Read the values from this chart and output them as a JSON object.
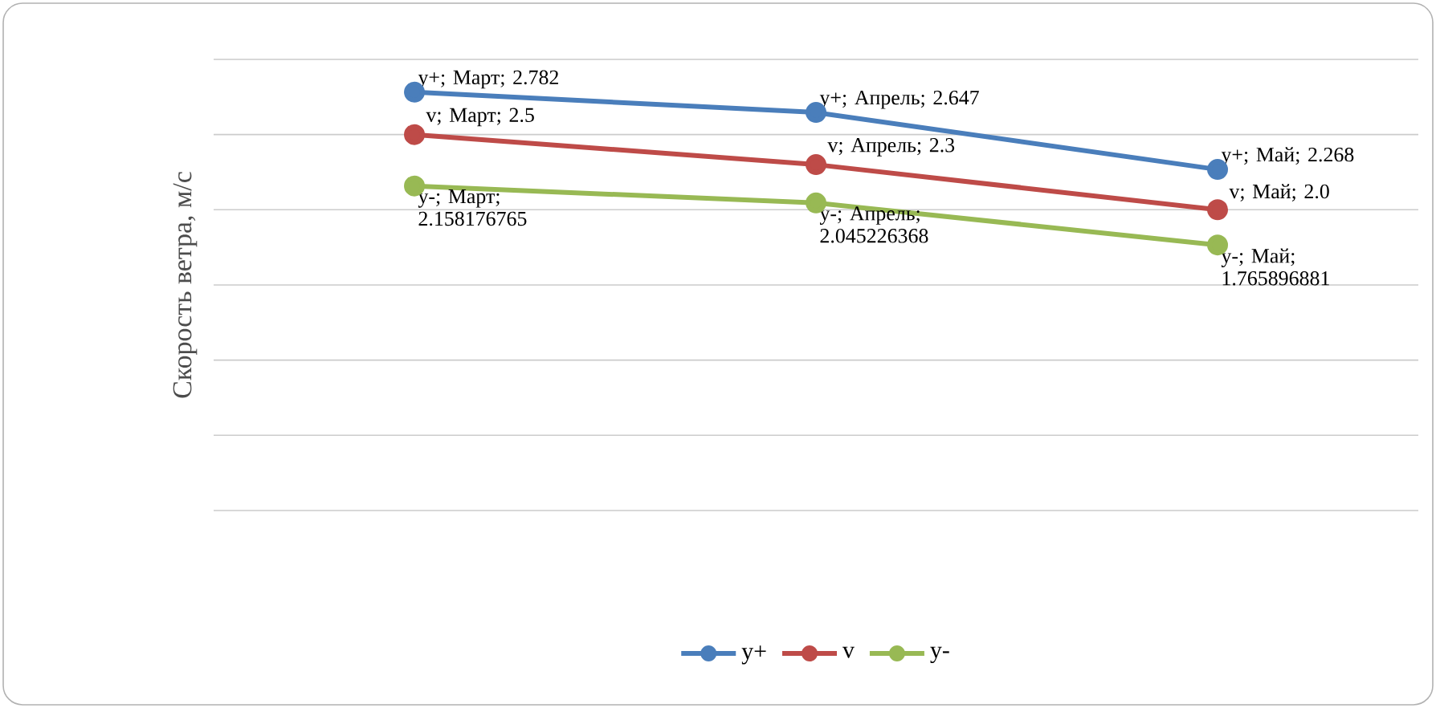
{
  "chart_data": {
    "type": "line",
    "ylabel": "Скорость ветра, м/с",
    "categories": [
      null,
      null,
      null
    ],
    "series": [
      {
        "name": "y+",
        "color": "#4a7ebb",
        "values": [
          2.782,
          2.647,
          2.268
        ],
        "value_labels": [
          "y+; Март; 2.782",
          "y+; Апрель; 2.647",
          "y+; Май; 2.268"
        ]
      },
      {
        "name": "v",
        "color": "#be4b48",
        "values": [
          2.5,
          2.3,
          2.0
        ],
        "value_labels": [
          "v; Март; 2.5",
          "v; Апрель; 2.3",
          "v; Май; 2.0"
        ]
      },
      {
        "name": "y-",
        "color": "#98b954",
        "values": [
          2.158176765,
          2.045226368,
          1.765896881
        ],
        "value_labels": [
          "y-; Март; 2.158176765",
          "y-; Апрель; 2.045226368",
          "y-; Май; 1.765896881"
        ]
      }
    ],
    "ylim": [
      0,
      3
    ],
    "yticks": [
      {
        "value": 0,
        "label": null
      },
      {
        "value": 0.5,
        "label": null
      },
      {
        "value": 1,
        "label": null
      },
      {
        "value": 1.5,
        "label": null
      },
      {
        "value": 2,
        "label": null
      },
      {
        "value": 2.5,
        "label": null
      },
      {
        "value": 3,
        "label": null
      }
    ],
    "grid": "y",
    "legend": "bottom",
    "marker": "circle",
    "line_style": "solid"
  }
}
